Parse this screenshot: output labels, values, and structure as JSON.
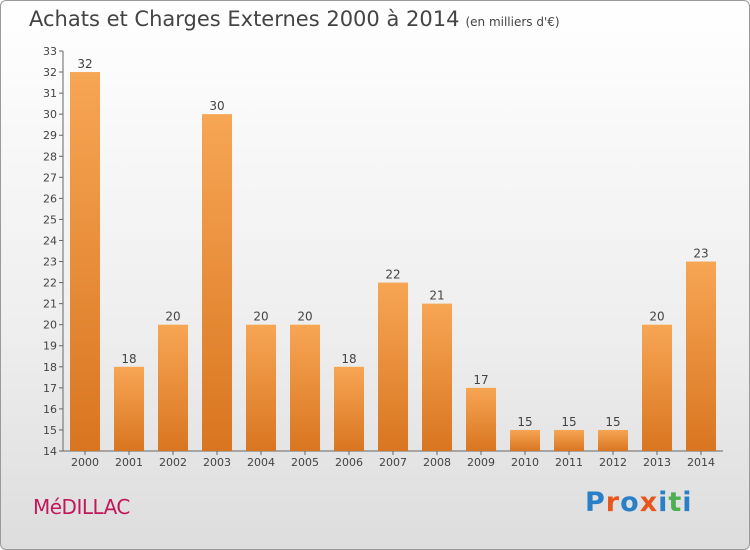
{
  "title": "Achats et Charges Externes 2000 à 2014",
  "unit": "(en milliers d'€)",
  "commune": "MéDILLAC",
  "logo": {
    "letters": [
      "P",
      "r",
      "o",
      "x",
      "i",
      "t",
      "i"
    ],
    "colors": [
      "#2a7fc9",
      "#e8561c",
      "#2a7fc9",
      "#e8561c",
      "#2a7fc9",
      "#4caf50",
      "#2a7fc9"
    ]
  },
  "colors": {
    "bar_light": "#f7a654",
    "bar_dark": "#d97521",
    "axis": "#666666",
    "grid": "#cccccc"
  },
  "chart_data": {
    "type": "bar",
    "title": "Achats et Charges Externes 2000 à 2014",
    "subtitle": "(en milliers d'€)",
    "categories": [
      "2000",
      "2001",
      "2002",
      "2003",
      "2004",
      "2005",
      "2006",
      "2007",
      "2008",
      "2009",
      "2010",
      "2011",
      "2012",
      "2013",
      "2014"
    ],
    "values": [
      32,
      18,
      20,
      30,
      20,
      20,
      18,
      22,
      21,
      17,
      15,
      15,
      15,
      20,
      23
    ],
    "ylim": [
      14,
      33
    ],
    "yticks": [
      14,
      15,
      16,
      17,
      18,
      19,
      20,
      21,
      22,
      23,
      24,
      25,
      26,
      27,
      28,
      29,
      30,
      31,
      32,
      33
    ],
    "grid": false,
    "data_labels": true
  }
}
